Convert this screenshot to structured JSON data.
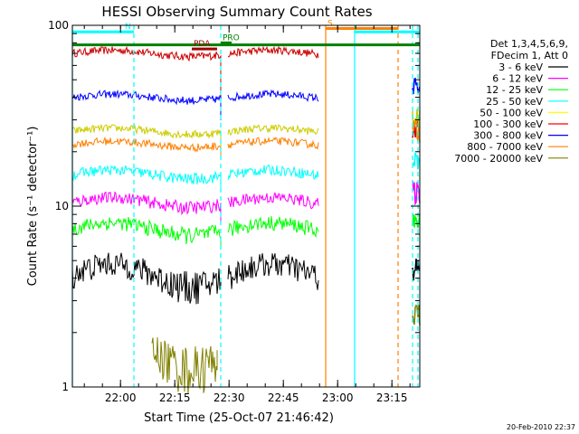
{
  "chart_data": {
    "type": "line",
    "title": "HESSI Observing Summary Count Rates",
    "xlabel": "Start Time (25-Oct-07 21:46:42)",
    "ylabel": "Count Rate (s⁻¹ detector⁻¹)",
    "yscale": "log",
    "ylim": [
      1,
      100
    ],
    "xlim_minutes": [
      0,
      96
    ],
    "x_ticks": [
      {
        "label": "22:00",
        "minute": 13.3
      },
      {
        "label": "22:15",
        "minute": 28.3
      },
      {
        "label": "22:30",
        "minute": 43.3
      },
      {
        "label": "22:45",
        "minute": 58.3
      },
      {
        "label": "23:00",
        "minute": 73.3
      },
      {
        "label": "23:15",
        "minute": 88.3
      }
    ],
    "y_ticks": [
      {
        "label": "1",
        "value": 1
      },
      {
        "label": "10",
        "value": 10
      },
      {
        "label": "100",
        "value": 100
      }
    ],
    "legend": {
      "placement": "right",
      "header": [
        "Det 1,3,4,5,6,9,",
        "FDecim 1, Att 0"
      ],
      "entries": [
        {
          "label": "3 - 6 keV",
          "color": "#000000"
        },
        {
          "label": "6 - 12 keV",
          "color": "#ff00ff"
        },
        {
          "label": "12 - 25 keV",
          "color": "#00ff00"
        },
        {
          "label": "25 - 50 keV",
          "color": "#00ffff"
        },
        {
          "label": "50 - 100 keV",
          "color": "#ffff00"
        },
        {
          "label": "100 - 300 keV",
          "color": "#ff0000"
        },
        {
          "label": "300 - 800 keV",
          "color": "#0000ff"
        },
        {
          "label": "800 - 7000 keV",
          "color": "#ff8000"
        },
        {
          "label": "7000 - 20000 keV",
          "color": "#808000"
        }
      ]
    },
    "series": [
      {
        "name": "100 - 300 keV",
        "color": "#cc0000",
        "segments": [
          [
            0,
            41
          ],
          [
            43,
            68
          ]
        ],
        "level": 70,
        "noise": 0.05,
        "dip": 30
      },
      {
        "name": "300 - 800 keV",
        "color": "#0000ff",
        "segments": [
          [
            0,
            41
          ],
          [
            43,
            68
          ]
        ],
        "level": 40,
        "noise": 0.05,
        "dip": 30
      },
      {
        "name": "50 - 100 keV",
        "color": "#cccc00",
        "segments": [
          [
            0,
            41
          ],
          [
            43,
            68
          ]
        ],
        "level": 26,
        "noise": 0.05,
        "dip": 20
      },
      {
        "name": "800 - 7000 keV",
        "color": "#ff8000",
        "segments": [
          [
            0,
            41
          ],
          [
            43,
            68
          ]
        ],
        "level": 22,
        "noise": 0.05,
        "dip": 18
      },
      {
        "name": "25 - 50 keV",
        "color": "#00ffff",
        "segments": [
          [
            0,
            41
          ],
          [
            43,
            68
          ]
        ],
        "level": 15,
        "noise": 0.07,
        "dip": 12
      },
      {
        "name": "6 - 12 keV",
        "color": "#ff00ff",
        "segments": [
          [
            0,
            41
          ],
          [
            43,
            68
          ]
        ],
        "level": 10.5,
        "noise": 0.08,
        "dip": 8
      },
      {
        "name": "12 - 25 keV",
        "color": "#00ff00",
        "segments": [
          [
            0,
            41
          ],
          [
            43,
            68
          ]
        ],
        "level": 7.5,
        "noise": 0.1,
        "dip": 6
      },
      {
        "name": "3 - 6 keV",
        "color": "#000000",
        "segments": [
          [
            0,
            41
          ],
          [
            43,
            68
          ]
        ],
        "level": 4.2,
        "noise": 0.18,
        "dip": 4
      },
      {
        "name": "7000 - 20000 keV",
        "color": "#808000",
        "segments": [
          [
            22,
            40
          ]
        ],
        "level": 1.6,
        "noise": 0.25,
        "dip": 1.6
      }
    ],
    "tail_values": {
      "100 - 300 keV": 28,
      "300 - 800 keV": 45,
      "50 - 100 keV": 30,
      "800 - 7000 keV": 26,
      "25 - 50 keV": 18,
      "6 - 12 keV": 12,
      "12 - 25 keV": 8,
      "3 - 6 keV": 4.5,
      "7000 - 20000 keV": 2.5
    },
    "tail_minutes": [
      94,
      96
    ],
    "flag_bars": [
      {
        "label": "N",
        "color": "#00ffff",
        "start": 0,
        "end": 17,
        "value": 92
      },
      {
        "label": "",
        "color": "#00ffff",
        "start": 78,
        "end": 96,
        "value": 92
      },
      {
        "label": "S",
        "color": "#ff8000",
        "start": 70,
        "end": 90,
        "value": 96
      },
      {
        "label": "",
        "color": "#008000",
        "start": 0,
        "end": 96,
        "value": 78
      },
      {
        "label": "PDA",
        "color": "#a00000",
        "start": 33,
        "end": 40,
        "value": 74
      },
      {
        "label": "PRO",
        "color": "#008000",
        "start": 41,
        "end": 44,
        "value": 80
      }
    ],
    "vertical_lines": [
      {
        "minute": 0,
        "color": "#00ffff",
        "dash": false
      },
      {
        "minute": 17,
        "color": "#00ffff",
        "dash": true
      },
      {
        "minute": 41,
        "color": "#00ffff",
        "dash": true
      },
      {
        "minute": 70,
        "color": "#ff8000",
        "dash": false
      },
      {
        "minute": 78,
        "color": "#00ffff",
        "dash": false
      },
      {
        "minute": 90,
        "color": "#ff8000",
        "dash": true
      },
      {
        "minute": 94,
        "color": "#00ffff",
        "dash": true
      },
      {
        "minute": 95.5,
        "color": "#00ffff",
        "dash": true
      }
    ],
    "grid": false
  },
  "footer_date": "20-Feb-2010 22:37"
}
